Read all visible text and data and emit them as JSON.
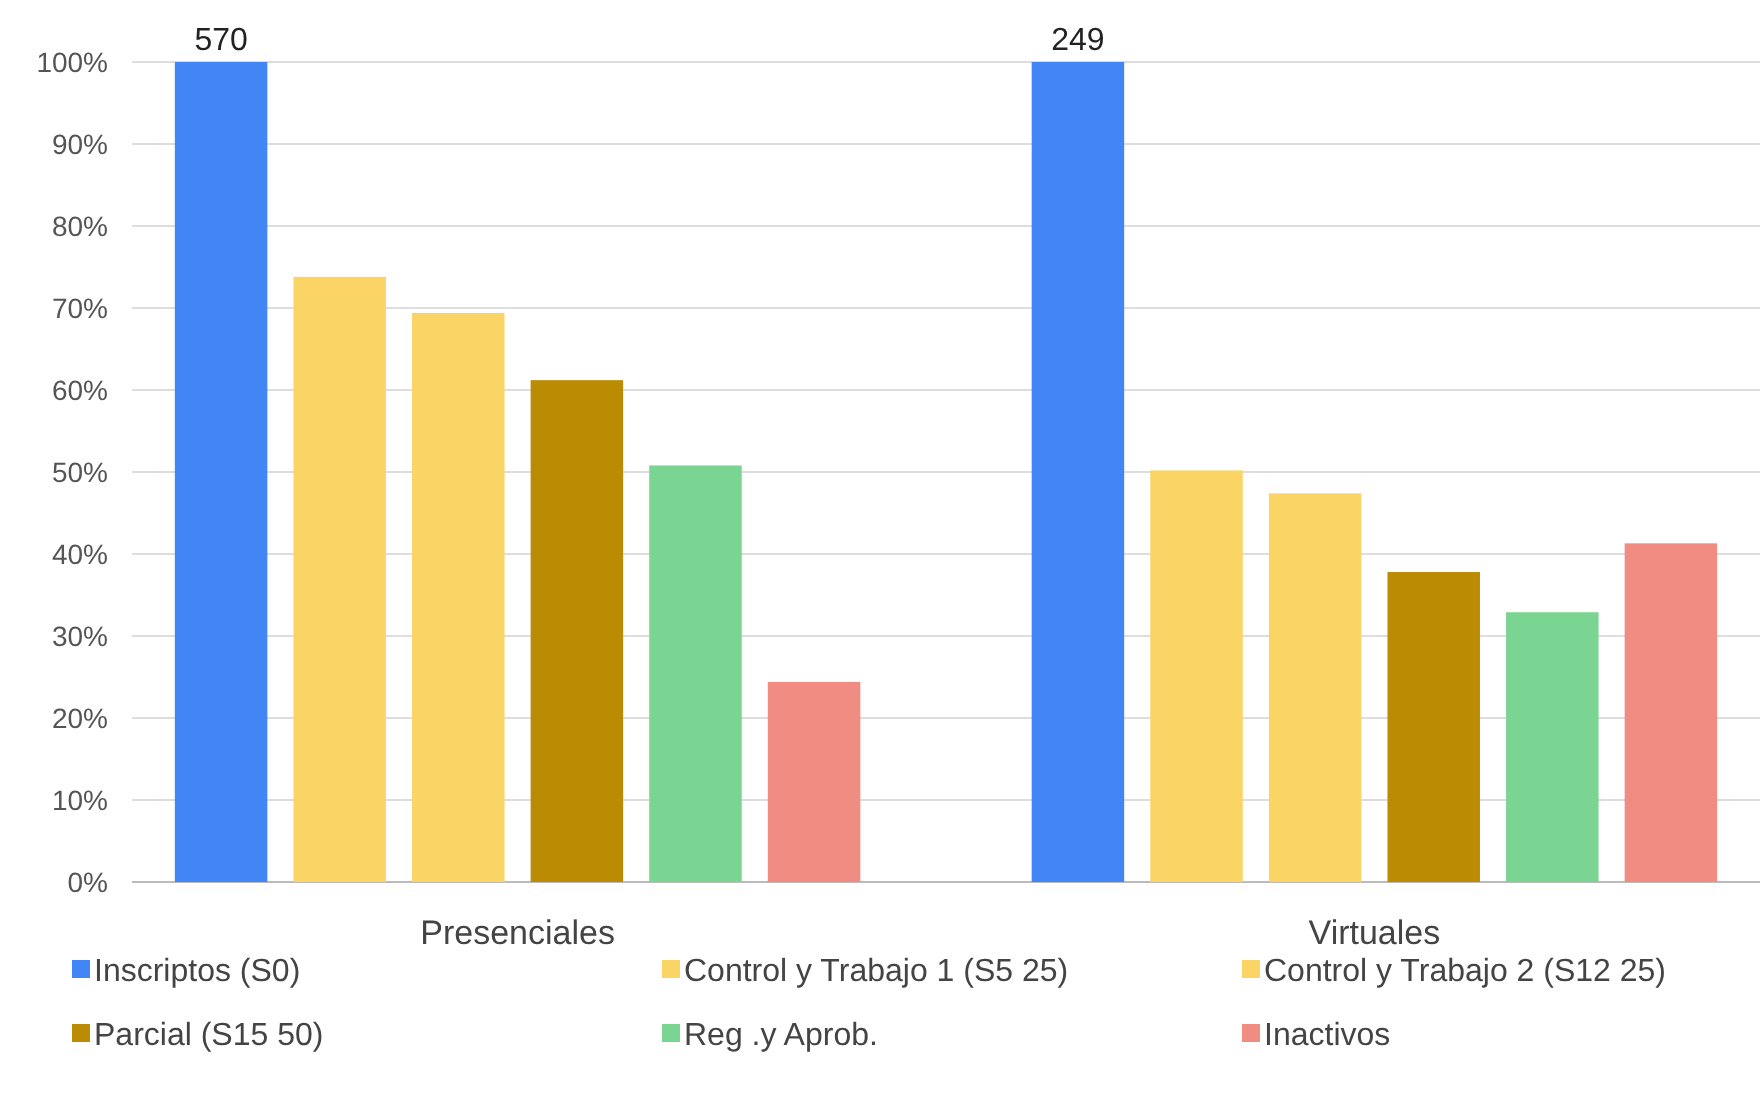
{
  "chart_data": {
    "type": "bar",
    "categories": [
      "Presenciales",
      "Virtuales"
    ],
    "series": [
      {
        "name": "Inscriptos (S0)",
        "color": "#4285f4",
        "values": [
          100,
          100
        ]
      },
      {
        "name": "Control y Trabajo 1 (S5 25)",
        "color": "#fad566",
        "values": [
          73.8,
          50.2
        ]
      },
      {
        "name": "Control y Trabajo 2 (S12 25)",
        "color": "#fad566",
        "values": [
          69.4,
          47.4
        ]
      },
      {
        "name": "Parcial (S15 50)",
        "color": "#bb8b04",
        "values": [
          61.2,
          37.8
        ]
      },
      {
        "name": "Reg .y Aprob.",
        "color": "#7bd592",
        "values": [
          50.8,
          32.9
        ]
      },
      {
        "name": "Inactivos",
        "color": "#f08c82",
        "values": [
          24.4,
          41.3
        ]
      }
    ],
    "ylim": [
      0,
      100
    ],
    "yticks": [
      {
        "value": 0,
        "label": "0%"
      },
      {
        "value": 10,
        "label": "10%"
      },
      {
        "value": 20,
        "label": "20%"
      },
      {
        "value": 30,
        "label": "30%"
      },
      {
        "value": 40,
        "label": "40%"
      },
      {
        "value": 50,
        "label": "50%"
      },
      {
        "value": 60,
        "label": "60%"
      },
      {
        "value": 70,
        "label": "70%"
      },
      {
        "value": 80,
        "label": "80%"
      },
      {
        "value": 90,
        "label": "90%"
      },
      {
        "value": 100,
        "label": "100%"
      }
    ],
    "grid": "y",
    "legend": "bottom",
    "annotations": [
      "570",
      "249"
    ]
  }
}
